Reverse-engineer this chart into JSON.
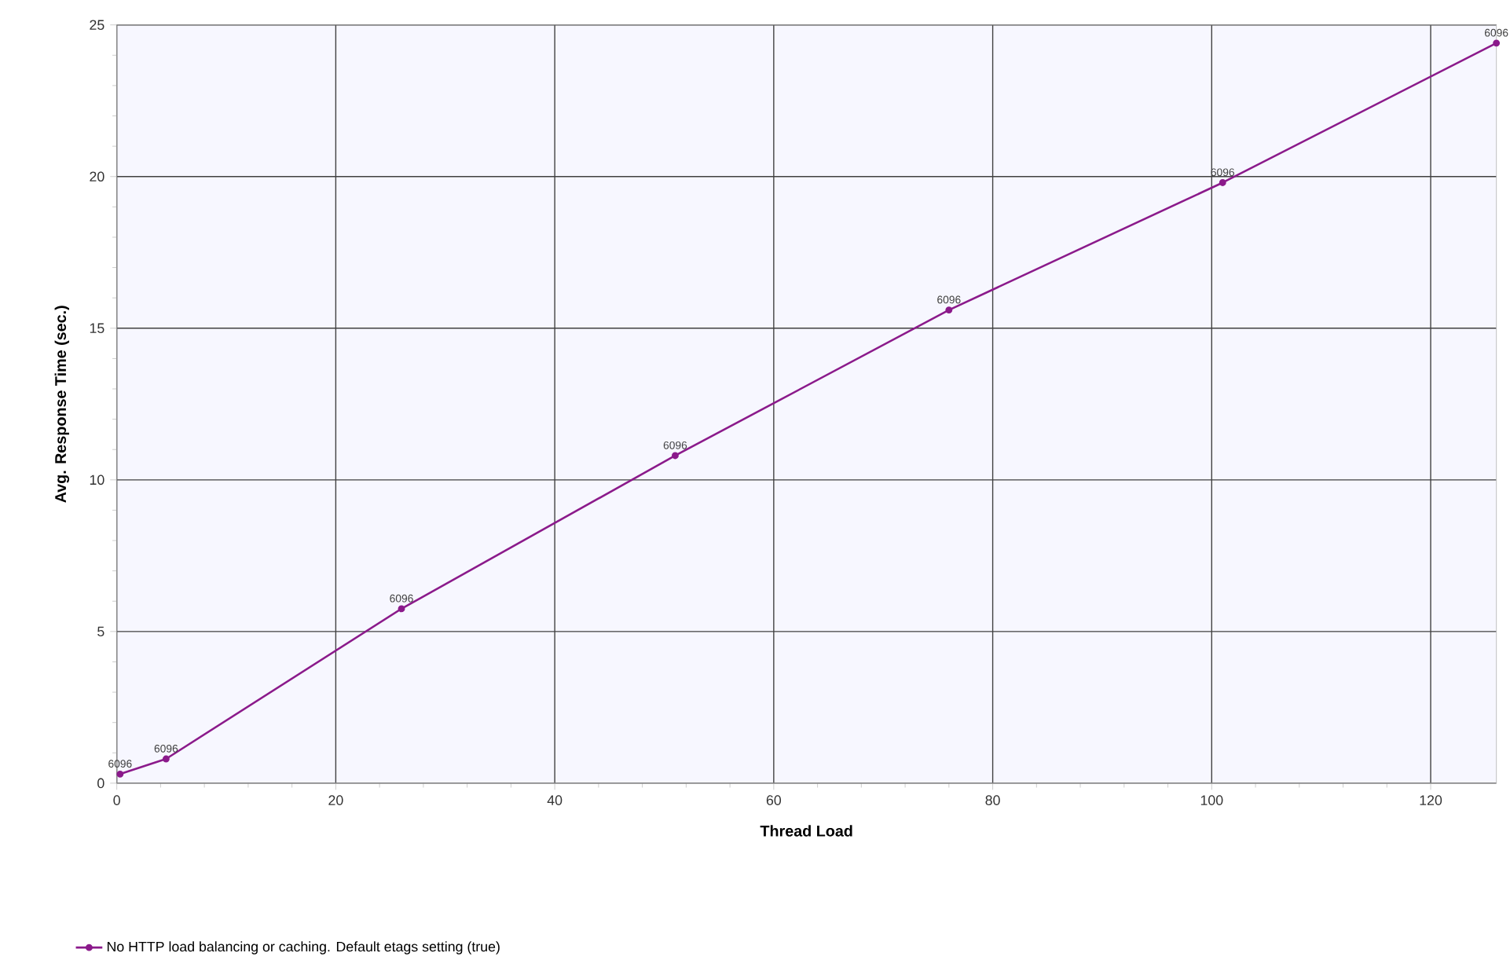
{
  "chart_data": {
    "type": "line",
    "xlabel": "Thread Load",
    "ylabel": "Avg. Response Time (sec.)",
    "xlim": [
      0,
      126
    ],
    "ylim": [
      0,
      25
    ],
    "xticks": [
      0,
      20,
      40,
      60,
      80,
      100,
      120
    ],
    "yticks": [
      0,
      5,
      10,
      15,
      20,
      25
    ],
    "annotations": [
      {
        "text": "6096",
        "x": 0.3,
        "y": 0.3
      },
      {
        "text": "6096",
        "x": 4.5,
        "y": 0.8
      },
      {
        "text": "6096",
        "x": 26,
        "y": 5.75
      },
      {
        "text": "6096",
        "x": 51,
        "y": 10.8
      },
      {
        "text": "6096",
        "x": 76,
        "y": 15.6
      },
      {
        "text": "6096",
        "x": 101,
        "y": 19.8
      },
      {
        "text": "6096",
        "x": 126,
        "y": 24.4
      }
    ],
    "grid": true,
    "legend": "bottom left",
    "marker": "circle",
    "line_style": "solid",
    "series": [
      {
        "name": "No HTTP load balancing or caching. Default etags setting (true)",
        "color": "#8b1a8b",
        "x": [
          0.3,
          4.5,
          26,
          51,
          76,
          101,
          126
        ],
        "values": [
          0.3,
          0.8,
          5.75,
          10.8,
          15.6,
          19.8,
          24.4
        ]
      }
    ]
  }
}
